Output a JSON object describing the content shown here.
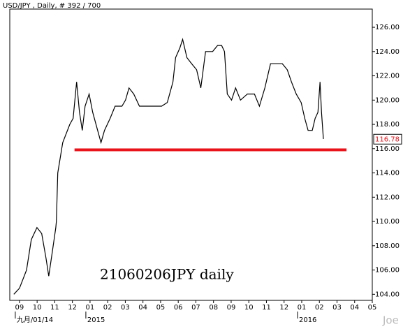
{
  "chart_data": {
    "type": "line",
    "title": "USD/JPY , Daily, # 392 / 700",
    "annotation": "21060206JPY daily",
    "watermark": "Joe",
    "color": "#000000",
    "x": [
      -0.32,
      0,
      0.4,
      0.67,
      0.99,
      1.26,
      1.5,
      1.66,
      1.86,
      2.06,
      2.09,
      2.17,
      2.45,
      2.85,
      3.04,
      3.24,
      3.4,
      3.56,
      3.72,
      3.95,
      4.15,
      4.43,
      4.62,
      4.82,
      5.14,
      5.42,
      5.81,
      6.01,
      6.21,
      6.48,
      6.8,
      7.19,
      7.59,
      8.06,
      8.38,
      8.7,
      8.85,
      9.09,
      9.25,
      9.49,
      9.76,
      10.04,
      10.28,
      10.55,
      10.95,
      11.23,
      11.46,
      11.62,
      11.78,
      12.02,
      12.25,
      12.53,
      12.92,
      13.32,
      13.6,
      13.91,
      14.23,
      14.51,
      14.9,
      15.18,
      15.42,
      15.69,
      15.97,
      16.17,
      16.36,
      16.6,
      16.76,
      16.92,
      17.04,
      17.12,
      17.23
    ],
    "values": [
      104,
      104.5,
      106,
      108.5,
      109.5,
      109,
      107,
      105.5,
      107.5,
      109.5,
      110,
      114,
      116.5,
      118,
      118.5,
      121.5,
      119,
      117.5,
      119.5,
      120.5,
      119,
      117.5,
      116.5,
      117.5,
      118.5,
      119.5,
      119.5,
      120,
      121,
      120.5,
      119.5,
      119.5,
      119.5,
      119.5,
      119.8,
      121.5,
      123.5,
      124.3,
      125,
      123.5,
      123,
      122.5,
      121,
      124,
      124,
      124.5,
      124.5,
      124,
      120.5,
      120,
      121,
      120,
      120.5,
      120.5,
      119.5,
      121,
      123,
      123,
      123,
      122.5,
      121.5,
      120.5,
      119.8,
      118.5,
      117.5,
      117.5,
      118.5,
      119,
      121.5,
      119,
      116.8
    ],
    "xlim": [
      -0.55,
      20
    ],
    "ylim": [
      103.5,
      127.5
    ],
    "yticks": [
      {
        "value": 104,
        "label": "104.00"
      },
      {
        "value": 106,
        "label": "106.00"
      },
      {
        "value": 108,
        "label": "108.00"
      },
      {
        "value": 110,
        "label": "110.00"
      },
      {
        "value": 112,
        "label": "112.00"
      },
      {
        "value": 114,
        "label": "114.00"
      },
      {
        "value": 116,
        "label": "116.00"
      },
      {
        "value": 118,
        "label": "118.00"
      },
      {
        "value": 120,
        "label": "120.00"
      },
      {
        "value": 122,
        "label": "122.00"
      },
      {
        "value": 124,
        "label": "124.00"
      },
      {
        "value": 126,
        "label": "126.00"
      }
    ],
    "xticks": [
      {
        "value": 0,
        "label": "09"
      },
      {
        "value": 1,
        "label": "10"
      },
      {
        "value": 2,
        "label": "11"
      },
      {
        "value": 3,
        "label": "12"
      },
      {
        "value": 4,
        "label": "01"
      },
      {
        "value": 5,
        "label": "02"
      },
      {
        "value": 6,
        "label": "03"
      },
      {
        "value": 7,
        "label": "04"
      },
      {
        "value": 8,
        "label": "05"
      },
      {
        "value": 9,
        "label": "06"
      },
      {
        "value": 10,
        "label": "07"
      },
      {
        "value": 11,
        "label": "08"
      },
      {
        "value": 12,
        "label": "09"
      },
      {
        "value": 13,
        "label": "10"
      },
      {
        "value": 14,
        "label": "11"
      },
      {
        "value": 15,
        "label": "12"
      },
      {
        "value": 16,
        "label": "01"
      },
      {
        "value": 17,
        "label": "02"
      },
      {
        "value": 18,
        "label": "03"
      },
      {
        "value": 19,
        "label": "04"
      },
      {
        "value": 20,
        "label": "05"
      }
    ],
    "x_sublabels": [
      {
        "value": 0,
        "label": "九月/01/14"
      },
      {
        "value": 4,
        "label": "2015"
      },
      {
        "value": 16,
        "label": "2016"
      }
    ],
    "last_value": 116.78,
    "support_line": {
      "value": 115.9,
      "from": 3.12,
      "to": 18.54,
      "color": "#e8131b"
    }
  }
}
